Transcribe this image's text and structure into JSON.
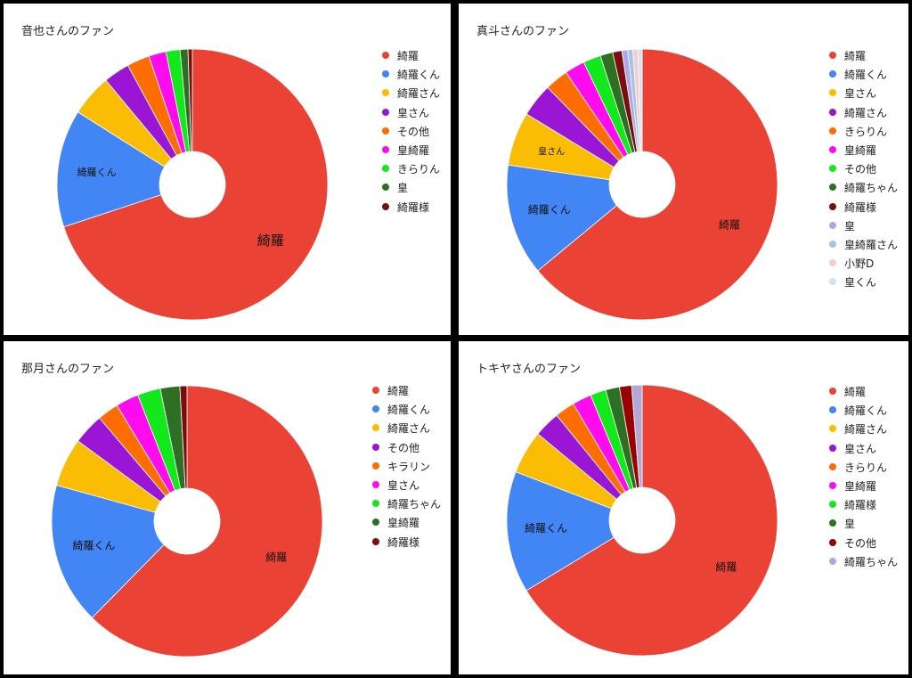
{
  "chart_data": [
    {
      "type": "pie",
      "title": "音也さんのファン",
      "categories": [
        "綺羅",
        "綺羅くん",
        "綺羅さん",
        "皇さん",
        "その他",
        "皇綺羅",
        "きらりん",
        "皇",
        "綺羅様"
      ],
      "values": [
        67.2,
        13.5,
        4.8,
        3.0,
        2.6,
        2.0,
        1.6,
        0.9,
        0.5
      ],
      "colors": [
        "#EA4335",
        "#4285F4",
        "#FBBC04",
        "#9B15D4",
        "#FF6D01",
        "#FF0BEE",
        "#13E81C",
        "#2E7023",
        "#7A0E0E"
      ],
      "slice_labels": [
        "綺羅",
        "綺羅くん",
        "",
        "",
        "",
        "",
        "",
        "",
        ""
      ],
      "donut": true,
      "legend": "right"
    },
    {
      "type": "pie",
      "title": "真斗さんのファン",
      "categories": [
        "綺羅",
        "綺羅くん",
        "皇さん",
        "綺羅さん",
        "きらりん",
        "皇綺羅",
        "その他",
        "綺羅ちゃん",
        "綺羅様",
        "皇",
        "皇綺羅さん",
        "小野D",
        "皇くん"
      ],
      "values": [
        64.0,
        13.3,
        6.4,
        4.0,
        2.8,
        2.4,
        2.1,
        1.5,
        1.1,
        0.7,
        0.6,
        0.6,
        0.5
      ],
      "colors": [
        "#EA4335",
        "#4285F4",
        "#FBBC04",
        "#9B15D4",
        "#FF6D01",
        "#FF0BEE",
        "#13E81C",
        "#2E7023",
        "#7A0E0E",
        "#B3A5E8",
        "#9FC5E8",
        "#F4CCCC",
        "#CFE2F3"
      ],
      "slice_labels": [
        "綺羅",
        "綺羅くん",
        "皇さん",
        "",
        "",
        "",
        "",
        "",
        "",
        "",
        "",
        "",
        ""
      ],
      "donut": true,
      "legend": "right"
    },
    {
      "type": "pie",
      "title": "那月さんのファン",
      "categories": [
        "綺羅",
        "綺羅くん",
        "綺羅さん",
        "その他",
        "キラリン",
        "皇さん",
        "綺羅ちゃん",
        "皇綺羅",
        "綺羅様"
      ],
      "values": [
        59.0,
        16.0,
        5.5,
        3.5,
        2.4,
        2.6,
        2.6,
        2.2,
        0.8
      ],
      "colors": [
        "#EA4335",
        "#4285F4",
        "#FBBC04",
        "#9B15D4",
        "#FF6D01",
        "#FF0BEE",
        "#13E81C",
        "#2E7023",
        "#7A0E0E"
      ],
      "slice_labels": [
        "綺羅",
        "綺羅くん",
        "",
        "",
        "",
        "",
        "",
        "",
        ""
      ],
      "donut": true,
      "legend": "right"
    },
    {
      "type": "pie",
      "title": "トキヤさんのファン",
      "categories": [
        "綺羅",
        "綺羅くん",
        "綺羅さん",
        "皇さん",
        "きらりん",
        "皇綺羅",
        "綺羅様",
        "皇",
        "その他",
        "綺羅ちゃん"
      ],
      "values": [
        64.0,
        14.0,
        5.0,
        3.0,
        2.3,
        2.2,
        1.8,
        1.6,
        1.4,
        1.2
      ],
      "colors": [
        "#EA4335",
        "#4285F4",
        "#FBBC04",
        "#9B15D4",
        "#FF6D01",
        "#FF0BEE",
        "#13E81C",
        "#2E7023",
        "#990000",
        "#B4A7D6"
      ],
      "slice_labels": [
        "綺羅",
        "綺羅くん",
        "",
        "",
        "",
        "",
        "",
        "",
        "",
        ""
      ],
      "donut": true,
      "legend": "right"
    }
  ]
}
